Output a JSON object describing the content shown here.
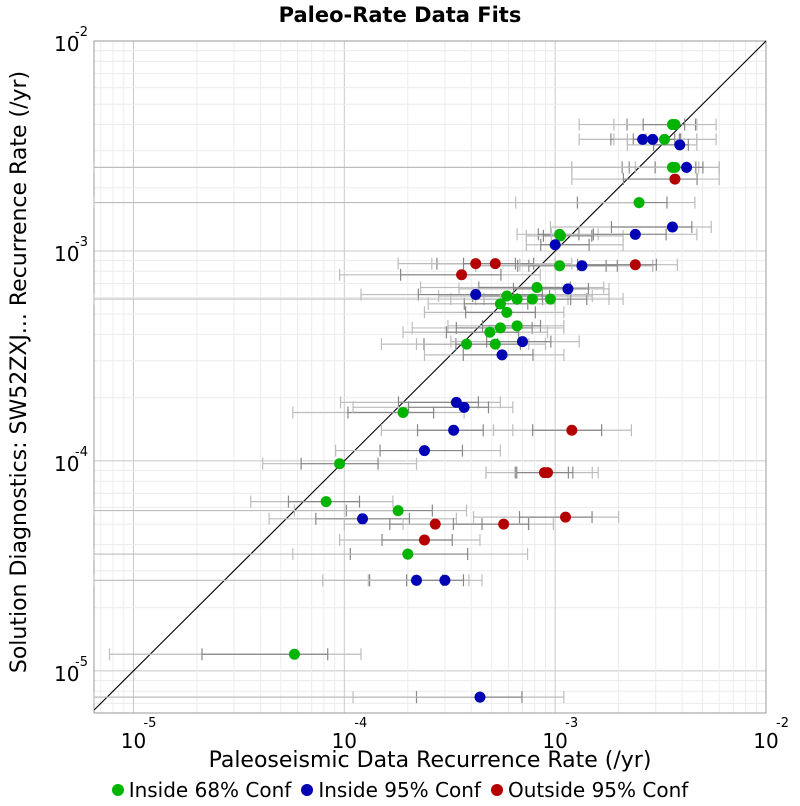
{
  "chart_data": {
    "type": "scatter",
    "title": "Paleo-Rate Data Fits",
    "xlabel": "Paleoseismic Data Recurrence Rate (/yr)",
    "ylabel": "Solution Diagnostics: SW52ZXJ... Recurrence Rate (/yr)",
    "x_scale": "log",
    "y_scale": "log",
    "xlim": [
      6.5e-06,
      0.01
    ],
    "ylim": [
      6.3e-06,
      0.01
    ],
    "x_ticks": [
      {
        "base": "10",
        "exp": "-5",
        "value": 1e-05
      },
      {
        "base": "10",
        "exp": "-4",
        "value": 0.0001
      },
      {
        "base": "10",
        "exp": "-3",
        "value": 0.001
      },
      {
        "base": "10",
        "exp": "-2",
        "value": 0.01
      }
    ],
    "y_ticks": [
      {
        "base": "10",
        "exp": "-5",
        "value": 1e-05
      },
      {
        "base": "10",
        "exp": "-4",
        "value": 0.0001
      },
      {
        "base": "10",
        "exp": "-3",
        "value": 0.001
      },
      {
        "base": "10",
        "exp": "-2",
        "value": 0.01
      }
    ],
    "grid": true,
    "reference_line": "y = x",
    "legend_position": "bottom",
    "series": [
      {
        "name": "Inside 68% Conf",
        "color": "#00b400",
        "points": [
          {
            "x": 0.0037,
            "y": 0.004,
            "xlo": 0.0013,
            "xhi": 0.0058
          },
          {
            "x": 0.0036,
            "y": 0.004,
            "xlo": 0.0019,
            "xhi": 0.0047
          },
          {
            "x": 0.0033,
            "y": 0.0034,
            "xlo": 0.0022,
            "xhi": 0.0047
          },
          {
            "x": 0.0036,
            "y": 0.0025,
            "xlo": 0.0012,
            "xhi": 0.006
          },
          {
            "x": 0.0037,
            "y": 0.0025,
            "xlo": 0.0024,
            "xhi": 0.0048
          },
          {
            "x": 0.0025,
            "y": 0.0017,
            "xlo": 0.00065,
            "xhi": 0.0046
          },
          {
            "x": 0.00105,
            "y": 0.0012,
            "xlo": 0.00066,
            "xhi": 0.0016
          },
          {
            "x": 0.00106,
            "y": 0.00118,
            "xlo": 0.00073,
            "xhi": 0.0021
          },
          {
            "x": 0.00105,
            "y": 0.00085,
            "xlo": 0.00042,
            "xhi": 0.0029
          },
          {
            "x": 0.00082,
            "y": 0.00067,
            "xlo": 0.00023,
            "xhi": 0.0017
          },
          {
            "x": 0.00059,
            "y": 0.00061,
            "xlo": 0.00028,
            "xhi": 0.0015
          },
          {
            "x": 0.00066,
            "y": 0.00059,
            "xlo": 0.00032,
            "xhi": 0.00115
          },
          {
            "x": 0.00078,
            "y": 0.00059,
            "xlo": 0.00042,
            "xhi": 0.0018
          },
          {
            "x": 0.00095,
            "y": 0.00059,
            "xlo": 0.00046,
            "xhi": 0.0021
          },
          {
            "x": 0.00055,
            "y": 0.00056,
            "xlo": 0.00025,
            "xhi": 0.001
          },
          {
            "x": 0.00059,
            "y": 0.00051,
            "xlo": 0.00024,
            "xhi": 0.0011
          },
          {
            "x": 0.00066,
            "y": 0.00044,
            "xlo": 0.00031,
            "xhi": 0.0011
          },
          {
            "x": 0.00055,
            "y": 0.00043,
            "xlo": 0.00021,
            "xhi": 0.0011
          },
          {
            "x": 0.00049,
            "y": 0.00041,
            "xlo": 0.00019,
            "xhi": 0.00092
          },
          {
            "x": 0.00038,
            "y": 0.00036,
            "xlo": 0.00015,
            "xhi": 0.00075
          },
          {
            "x": 0.00052,
            "y": 0.00036,
            "xlo": 0.00022,
            "xhi": 0.0009
          },
          {
            "x": 0.00019,
            "y": 0.00017,
            "xlo": 5.7e-05,
            "xhi": 0.00037
          },
          {
            "x": 9.5e-05,
            "y": 9.7e-05,
            "xlo": 4.1e-05,
            "xhi": 0.00022
          },
          {
            "x": 8.2e-05,
            "y": 6.4e-05,
            "xlo": 3.6e-05,
            "xhi": 0.00017
          },
          {
            "x": 0.00018,
            "y": 5.8e-05,
            "xlo": 5.8e-05,
            "xhi": 0.00038
          },
          {
            "x": 0.0002,
            "y": 3.6e-05,
            "xlo": 5.7e-05,
            "xhi": 0.00074
          },
          {
            "x": 5.8e-05,
            "y": 1.2e-05,
            "xlo": 7.7e-06,
            "xhi": 0.00012
          }
        ]
      },
      {
        "name": "Inside 95% Conf",
        "color": "#0000b4",
        "points": [
          {
            "x": 0.0026,
            "y": 0.0034,
            "xlo": 0.0013,
            "xhi": 0.0058
          },
          {
            "x": 0.0029,
            "y": 0.0034,
            "xlo": 0.0019,
            "xhi": 0.0047
          },
          {
            "x": 0.0039,
            "y": 0.0032,
            "xlo": 0.0022,
            "xhi": 0.0047
          },
          {
            "x": 0.0042,
            "y": 0.0025,
            "xlo": 0.0012,
            "xhi": 0.006
          },
          {
            "x": 0.0036,
            "y": 0.0013,
            "xlo": 0.00095,
            "xhi": 0.0055
          },
          {
            "x": 0.0024,
            "y": 0.0012,
            "xlo": 0.00096,
            "xhi": 0.0047
          },
          {
            "x": 0.001,
            "y": 0.00107,
            "xlo": 0.00073,
            "xhi": 0.0021
          },
          {
            "x": 0.00134,
            "y": 0.00085,
            "xlo": 0.00042,
            "xhi": 0.0029
          },
          {
            "x": 0.00115,
            "y": 0.00066,
            "xlo": 0.00035,
            "xhi": 0.0018
          },
          {
            "x": 0.00042,
            "y": 0.00062,
            "xlo": 0.00012,
            "xhi": 0.0018
          },
          {
            "x": 0.0007,
            "y": 0.00037,
            "xlo": 0.00032,
            "xhi": 0.0013
          },
          {
            "x": 0.00056,
            "y": 0.00032,
            "xlo": 0.00024,
            "xhi": 0.0011
          },
          {
            "x": 0.00034,
            "y": 0.00019,
            "xlo": 9.6e-05,
            "xhi": 0.00055
          },
          {
            "x": 0.00037,
            "y": 0.00018,
            "xlo": 0.00011,
            "xhi": 0.00063
          },
          {
            "x": 0.00033,
            "y": 0.00014,
            "xlo": 0.00015,
            "xhi": 0.00063
          },
          {
            "x": 0.00024,
            "y": 0.000112,
            "xlo": 9.1e-05,
            "xhi": 0.00055
          },
          {
            "x": 0.000122,
            "y": 5.3e-05,
            "xlo": 4.4e-05,
            "xhi": 0.00034
          },
          {
            "x": 0.00022,
            "y": 2.7e-05,
            "xlo": 7.9e-05,
            "xhi": 0.00039
          },
          {
            "x": 0.0003,
            "y": 2.7e-05,
            "xlo": 0.00013,
            "xhi": 0.00045
          },
          {
            "x": 0.00044,
            "y": 7.5e-06,
            "xlo": 0.00011,
            "xhi": 0.0011
          }
        ]
      },
      {
        "name": "Outside 95% Conf",
        "color": "#b40000",
        "points": [
          {
            "x": 0.0037,
            "y": 0.0022,
            "xlo": 0.0012,
            "xhi": 0.006
          },
          {
            "x": 0.00042,
            "y": 0.00087,
            "xlo": 0.00018,
            "xhi": 0.001
          },
          {
            "x": 0.00052,
            "y": 0.00087,
            "xlo": 0.00026,
            "xhi": 0.0012
          },
          {
            "x": 0.00036,
            "y": 0.00077,
            "xlo": 9.5e-05,
            "xhi": 0.00085
          },
          {
            "x": 0.0024,
            "y": 0.00086,
            "xlo": 0.00068,
            "xhi": 0.0038
          },
          {
            "x": 0.0012,
            "y": 0.00014,
            "xlo": 0.00051,
            "xhi": 0.0023
          },
          {
            "x": 0.00089,
            "y": 8.8e-05,
            "xlo": 0.00047,
            "xhi": 0.0015
          },
          {
            "x": 0.00092,
            "y": 8.8e-05,
            "xlo": 0.00047,
            "xhi": 0.0016
          },
          {
            "x": 0.00027,
            "y": 5e-05,
            "xlo": 0.0001,
            "xhi": 0.00075
          },
          {
            "x": 0.00057,
            "y": 5e-05,
            "xlo": 0.00019,
            "xhi": 0.00098
          },
          {
            "x": 0.00112,
            "y": 5.4e-05,
            "xlo": 0.00041,
            "xhi": 0.002
          },
          {
            "x": 0.00024,
            "y": 4.2e-05,
            "xlo": 9.5e-05,
            "xhi": 0.00044
          }
        ]
      }
    ],
    "lone_error_bars": [
      {
        "y": 0.0017,
        "xlo": 6.5e-06,
        "xhi": 0.0025
      },
      {
        "y": 0.0025,
        "xlo": 6.5e-06,
        "xhi": 0.0036
      },
      {
        "y": 0.00059,
        "xlo": 6.5e-06,
        "xhi": 0.00055
      },
      {
        "y": 5.8e-05,
        "xlo": 6.5e-06,
        "xhi": 0.00018
      },
      {
        "y": 3.6e-05,
        "xlo": 6.5e-06,
        "xhi": 0.0002
      },
      {
        "y": 2.7e-05,
        "xlo": 6.5e-06,
        "xhi": 0.00022
      },
      {
        "y": 7.5e-06,
        "xlo": 6.5e-06,
        "xhi": 0.00044
      }
    ]
  }
}
